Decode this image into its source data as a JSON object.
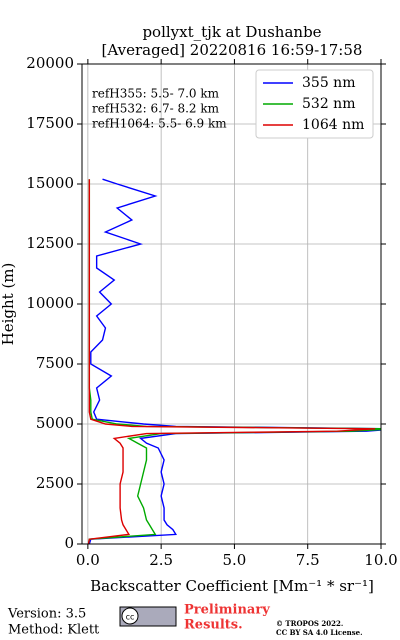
{
  "chart_data": {
    "type": "line",
    "title": "pollyxt_tjk at Dushanbe",
    "subtitle": "[Averaged] 20220816 16:59-17:58",
    "x_label": "Backscatter Coefficient [Mm⁻¹ * sr⁻¹]",
    "y_label": "Height (m)",
    "annotations": [
      "refH355:  5.5- 7.0 km",
      "refH532:  6.7- 8.2 km",
      "refH1064:  5.5- 6.9 km"
    ],
    "xlim": [
      -0.2,
      10
    ],
    "xticks": [
      {
        "value": 0,
        "label": "0.0"
      },
      {
        "value": 2.5,
        "label": "2.5"
      },
      {
        "value": 5,
        "label": "5.0"
      },
      {
        "value": 7.5,
        "label": "7.5"
      },
      {
        "value": 10,
        "label": "10.0"
      }
    ],
    "ylim": [
      0,
      20000
    ],
    "yticks": [
      0,
      2500,
      5000,
      7500,
      10000,
      12500,
      15000,
      17500,
      20000
    ],
    "grid": true,
    "legend": "upper right",
    "heights": [
      0,
      200,
      400,
      600,
      800,
      1000,
      1500,
      2000,
      2500,
      3000,
      3500,
      4000,
      4200,
      4400,
      4600,
      4700,
      4800,
      4900,
      5000,
      5200,
      5500,
      6000,
      6500,
      7000,
      7500,
      8000,
      8500,
      9000,
      9500,
      10000,
      10500,
      11000,
      11500,
      12000,
      12500,
      13000,
      13500,
      14000,
      14500,
      15000,
      15200
    ],
    "series": [
      {
        "name": "355 nm",
        "color": "#0000ff",
        "values": [
          0.05,
          0.1,
          3.0,
          2.9,
          2.7,
          2.6,
          2.6,
          2.5,
          2.6,
          2.5,
          2.6,
          2.4,
          2.0,
          1.8,
          3.0,
          9.5,
          10.5,
          3.0,
          1.9,
          0.3,
          0.2,
          0.4,
          0.3,
          0.8,
          0.1,
          0.1,
          0.5,
          0.6,
          0.3,
          0.8,
          0.4,
          0.9,
          0.3,
          0.3,
          1.8,
          0.6,
          1.5,
          1.0,
          2.3,
          1.0,
          0.5
        ]
      },
      {
        "name": "532 nm",
        "color": "#00aa00",
        "values": [
          0.02,
          0.05,
          2.3,
          2.2,
          2.1,
          2.0,
          1.9,
          1.7,
          1.8,
          1.9,
          2.0,
          2.0,
          1.7,
          1.4,
          2.5,
          9.0,
          10.5,
          2.0,
          1.0,
          0.15,
          0.1,
          0.1,
          0.05,
          0.05,
          0.05,
          0.05,
          0.05,
          0.05,
          0.05,
          0.05,
          0.05,
          0.05,
          0.05,
          0.05,
          0.05,
          0.05,
          0.05,
          0.05,
          0.05,
          0.05,
          0.05
        ]
      },
      {
        "name": "1064 nm",
        "color": "#dd0000",
        "values": [
          0.02,
          0.05,
          1.4,
          1.3,
          1.2,
          1.15,
          1.1,
          1.1,
          1.1,
          1.2,
          1.2,
          1.2,
          1.1,
          0.9,
          2.0,
          8.5,
          9.8,
          1.5,
          0.6,
          0.1,
          0.05,
          0.05,
          0.05,
          0.05,
          0.05,
          0.05,
          0.05,
          0.05,
          0.05,
          0.05,
          0.05,
          0.05,
          0.05,
          0.05,
          0.05,
          0.05,
          0.05,
          0.05,
          0.05,
          0.05,
          0.05
        ]
      }
    ]
  },
  "footer": {
    "version": "Version: 3.5",
    "method": "Method: Klett",
    "preliminary": "Preliminary",
    "results": "Results.",
    "copyright": "© TROPOS 2022.",
    "license": "CC BY SA 4.0 License."
  }
}
